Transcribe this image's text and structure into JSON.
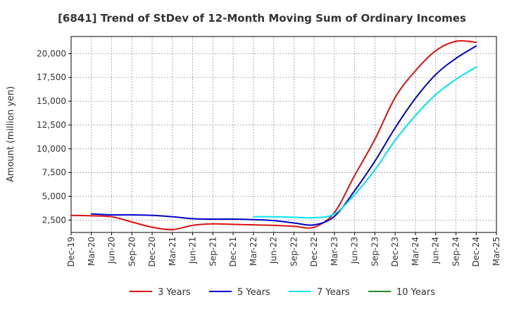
{
  "chart_data": {
    "type": "line",
    "title": "[6841]  Trend of StDev of 12-Month Moving Sum of Ordinary Incomes",
    "xlabel": "",
    "ylabel": "Amount (million yen)",
    "ylim": [
      1200,
      21800
    ],
    "yticks": [
      2500,
      5000,
      7500,
      10000,
      12500,
      15000,
      17500,
      20000
    ],
    "ytick_labels": [
      "2,500",
      "5,000",
      "7,500",
      "10,000",
      "12,500",
      "15,000",
      "17,500",
      "20,000"
    ],
    "x_labels": [
      "Dec-19",
      "Mar-20",
      "Jun-20",
      "Sep-20",
      "Dec-20",
      "Mar-21",
      "Jun-21",
      "Sep-21",
      "Dec-21",
      "Mar-22",
      "Jun-22",
      "Sep-22",
      "Dec-22",
      "Mar-23",
      "Jun-23",
      "Sep-23",
      "Dec-23",
      "Mar-24",
      "Jun-24",
      "Sep-24",
      "Dec-24",
      "Mar-25"
    ],
    "grid": true,
    "legend_position": "bottom",
    "series": [
      {
        "name": "3 Years",
        "color": "#dd1111",
        "x": [
          "Dec-19",
          "Mar-20",
          "Jun-20",
          "Sep-20",
          "Dec-20",
          "Mar-21",
          "Jun-21",
          "Sep-21",
          "Dec-21",
          "Mar-22",
          "Jun-22",
          "Sep-22",
          "Dec-22",
          "Mar-23",
          "Jun-23",
          "Sep-23",
          "Dec-23",
          "Mar-24",
          "Jun-24",
          "Sep-24",
          "Dec-24"
        ],
        "values": [
          3000,
          2950,
          2850,
          2300,
          1750,
          1500,
          1950,
          2100,
          2050,
          2000,
          1950,
          1850,
          1750,
          3300,
          7200,
          11000,
          15400,
          18200,
          20300,
          21300,
          21200
        ]
      },
      {
        "name": "5 Years",
        "color": "#0000cc",
        "x": [
          "Mar-20",
          "Jun-20",
          "Sep-20",
          "Dec-20",
          "Mar-21",
          "Jun-21",
          "Sep-21",
          "Dec-21",
          "Mar-22",
          "Jun-22",
          "Sep-22",
          "Dec-22",
          "Mar-23",
          "Jun-23",
          "Sep-23",
          "Dec-23",
          "Mar-24",
          "Jun-24",
          "Sep-24",
          "Dec-24"
        ],
        "values": [
          3150,
          3050,
          3050,
          3000,
          2850,
          2650,
          2600,
          2600,
          2550,
          2450,
          2200,
          2000,
          2900,
          5600,
          8700,
          12200,
          15300,
          17800,
          19500,
          20800
        ]
      },
      {
        "name": "7 Years",
        "color": "#00e5ee",
        "x": [
          "Mar-22",
          "Jun-22",
          "Sep-22",
          "Dec-22",
          "Mar-23",
          "Jun-23",
          "Sep-23",
          "Dec-23",
          "Mar-24",
          "Jun-24",
          "Sep-24",
          "Dec-24"
        ],
        "values": [
          2850,
          2850,
          2800,
          2750,
          3150,
          5200,
          7800,
          10900,
          13500,
          15700,
          17300,
          18600
        ]
      },
      {
        "name": "10 Years",
        "color": "#228b22",
        "x": [],
        "values": []
      }
    ]
  }
}
